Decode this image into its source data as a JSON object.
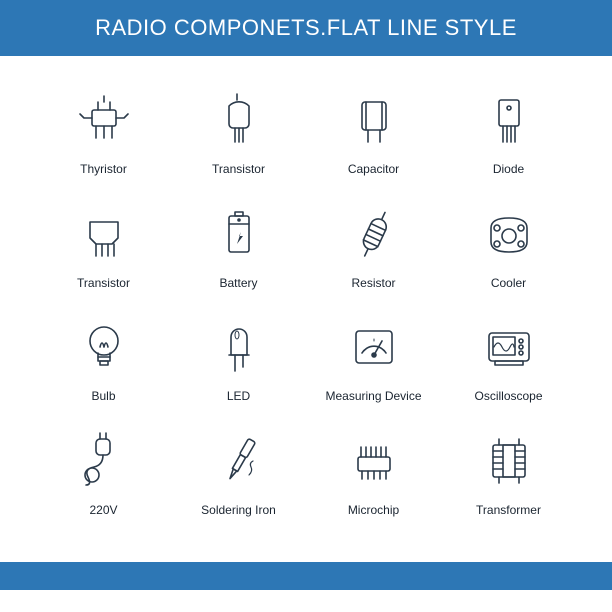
{
  "header": {
    "title": "RADIO COMPONETS.FLAT LINE STYLE",
    "background_color": "#2d77b5",
    "text_color": "#ffffff",
    "fontsize": 22
  },
  "footer": {
    "background_color": "#2d77b5",
    "height": 28
  },
  "grid": {
    "columns": 4,
    "rows": 4,
    "icon_stroke": "#2b3a4a",
    "label_color": "#1a2430",
    "label_fontsize": 12,
    "background_color": "#ffffff",
    "items": [
      {
        "label": "Thyristor",
        "icon": "thyristor"
      },
      {
        "label": "Transistor",
        "icon": "transistor-to92"
      },
      {
        "label": "Capacitor",
        "icon": "capacitor"
      },
      {
        "label": "Diode",
        "icon": "diode"
      },
      {
        "label": "Transistor",
        "icon": "transistor-package"
      },
      {
        "label": "Battery",
        "icon": "battery"
      },
      {
        "label": "Resistor",
        "icon": "resistor"
      },
      {
        "label": "Cooler",
        "icon": "cooler"
      },
      {
        "label": "Bulb",
        "icon": "bulb"
      },
      {
        "label": "LED",
        "icon": "led"
      },
      {
        "label": "Measuring Device",
        "icon": "meter"
      },
      {
        "label": "Oscilloscope",
        "icon": "oscilloscope"
      },
      {
        "label": "220V",
        "icon": "plug"
      },
      {
        "label": "Soldering Iron",
        "icon": "solder"
      },
      {
        "label": "Microchip",
        "icon": "microchip"
      },
      {
        "label": "Transformer",
        "icon": "transformer"
      }
    ]
  }
}
